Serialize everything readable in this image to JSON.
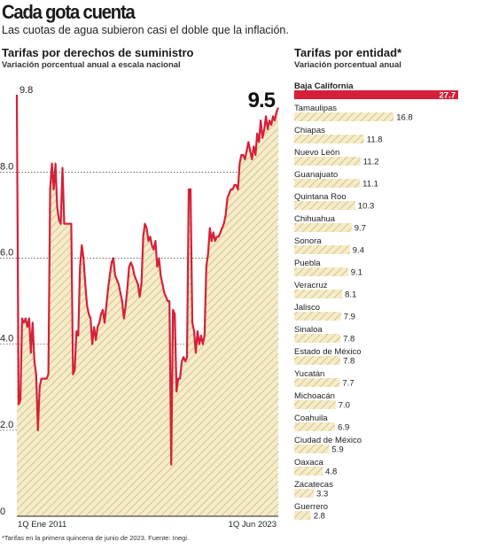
{
  "header": {
    "title": "Cada gota cuenta",
    "subtitle": "Las cuotas de agua subieron casi el doble que la inflación."
  },
  "footnote": "*Tarifas en la primera quincena de junio de 2023. Fuente: Inegi.",
  "colors": {
    "line": "#d6203a",
    "area_fill": "#f7ecc8",
    "hatch": "#c9b98a",
    "bar_highlight": "#d6203a",
    "bar_hatch_bg": "#f5eac6"
  },
  "chart_data": [
    {
      "type": "area",
      "title": "Tarifas por derechos de suministro",
      "subtitle": "Variación porcentual anual a escala nacional",
      "x_labels": [
        "1Q Ene 2011",
        "1Q Jun 2023"
      ],
      "x_range": [
        "2011-01",
        "2023-06"
      ],
      "ylim": [
        0,
        9.8
      ],
      "y_ticks": [
        {
          "value": 0,
          "label": "0"
        },
        {
          "value": 2,
          "label": "2.0"
        },
        {
          "value": 4,
          "label": "4.0"
        },
        {
          "value": 6,
          "label": "6.0"
        },
        {
          "value": 8,
          "label": "8.0"
        },
        {
          "value": 9.8,
          "label": "9.8"
        }
      ],
      "end_label": "9.5",
      "grid": true,
      "series": [
        {
          "values": [
            [
              "2011-01",
              9.8
            ],
            [
              "2011-02",
              2.6
            ],
            [
              "2011-03",
              2.7
            ],
            [
              "2011-04",
              4.6
            ],
            [
              "2011-05",
              4.5
            ],
            [
              "2011-06",
              4.6
            ],
            [
              "2011-07",
              4.4
            ],
            [
              "2011-08",
              4.6
            ],
            [
              "2011-09",
              3.8
            ],
            [
              "2011-10",
              4.5
            ],
            [
              "2011-11",
              3.6
            ],
            [
              "2011-12",
              3.3
            ],
            [
              "2012-01",
              2.0
            ],
            [
              "2012-02",
              3.0
            ],
            [
              "2012-03",
              3.2
            ],
            [
              "2012-04",
              3.2
            ],
            [
              "2012-05",
              3.2
            ],
            [
              "2012-06",
              3.2
            ],
            [
              "2012-07",
              3.3
            ],
            [
              "2012-08",
              7.6
            ],
            [
              "2012-09",
              8.2
            ],
            [
              "2012-10",
              7.6
            ],
            [
              "2012-11",
              8.2
            ],
            [
              "2012-12",
              7.2
            ],
            [
              "2013-01",
              6.9
            ],
            [
              "2013-02",
              6.8
            ],
            [
              "2013-03",
              8.1
            ],
            [
              "2013-04",
              6.8
            ],
            [
              "2013-05",
              6.8
            ],
            [
              "2013-06",
              6.8
            ],
            [
              "2013-07",
              6.8
            ],
            [
              "2013-08",
              6.8
            ],
            [
              "2013-09",
              3.3
            ],
            [
              "2013-10",
              3.4
            ],
            [
              "2013-11",
              4.3
            ],
            [
              "2013-12",
              4.2
            ],
            [
              "2014-01",
              5.8
            ],
            [
              "2014-02",
              6.3
            ],
            [
              "2014-03",
              6.0
            ],
            [
              "2014-04",
              5.4
            ],
            [
              "2014-05",
              4.9
            ],
            [
              "2014-06",
              4.7
            ],
            [
              "2014-07",
              4.6
            ],
            [
              "2014-08",
              4.0
            ],
            [
              "2014-09",
              4.4
            ],
            [
              "2014-10",
              4.1
            ],
            [
              "2014-11",
              4.4
            ],
            [
              "2014-12",
              4.5
            ],
            [
              "2015-01",
              4.7
            ],
            [
              "2015-02",
              4.8
            ],
            [
              "2015-03",
              4.5
            ],
            [
              "2015-04",
              4.9
            ],
            [
              "2015-05",
              5.3
            ],
            [
              "2015-06",
              5.6
            ],
            [
              "2015-07",
              5.9
            ],
            [
              "2015-08",
              6.0
            ],
            [
              "2015-09",
              5.6
            ],
            [
              "2015-10",
              5.5
            ],
            [
              "2015-11",
              5.4
            ],
            [
              "2015-12",
              5.2
            ],
            [
              "2016-01",
              5.0
            ],
            [
              "2016-02",
              4.6
            ],
            [
              "2016-03",
              4.9
            ],
            [
              "2016-04",
              5.3
            ],
            [
              "2016-05",
              5.8
            ],
            [
              "2016-06",
              5.9
            ],
            [
              "2016-07",
              5.8
            ],
            [
              "2016-08",
              5.6
            ],
            [
              "2016-09",
              5.5
            ],
            [
              "2016-10",
              5.4
            ],
            [
              "2016-11",
              5.1
            ],
            [
              "2016-12",
              5.4
            ],
            [
              "2017-01",
              6.5
            ],
            [
              "2017-02",
              6.8
            ],
            [
              "2017-03",
              6.7
            ],
            [
              "2017-04",
              6.4
            ],
            [
              "2017-05",
              6.5
            ],
            [
              "2017-06",
              6.3
            ],
            [
              "2017-07",
              6.2
            ],
            [
              "2017-08",
              6.4
            ],
            [
              "2017-09",
              5.8
            ],
            [
              "2017-10",
              6.0
            ],
            [
              "2017-11",
              5.6
            ],
            [
              "2017-12",
              5.4
            ],
            [
              "2018-01",
              5.2
            ],
            [
              "2018-02",
              5.1
            ],
            [
              "2018-03",
              5.0
            ],
            [
              "2018-04",
              5.0
            ],
            [
              "2018-05",
              1.2
            ],
            [
              "2018-06",
              4.8
            ],
            [
              "2018-07",
              4.7
            ],
            [
              "2018-08",
              2.9
            ],
            [
              "2018-09",
              3.2
            ],
            [
              "2018-10",
              3.2
            ],
            [
              "2018-11",
              3.6
            ],
            [
              "2018-12",
              3.7
            ],
            [
              "2019-01",
              3.6
            ],
            [
              "2019-02",
              3.7
            ],
            [
              "2019-03",
              7.6
            ],
            [
              "2019-04",
              7.6
            ],
            [
              "2019-05",
              4.5
            ],
            [
              "2019-06",
              4.3
            ],
            [
              "2019-07",
              3.8
            ],
            [
              "2019-08",
              4.3
            ],
            [
              "2019-09",
              4.0
            ],
            [
              "2019-10",
              4.2
            ],
            [
              "2019-11",
              4.0
            ],
            [
              "2019-12",
              4.2
            ],
            [
              "2020-01",
              5.8
            ],
            [
              "2020-02",
              6.1
            ],
            [
              "2020-03",
              6.7
            ],
            [
              "2020-04",
              6.4
            ],
            [
              "2020-05",
              6.6
            ],
            [
              "2020-06",
              6.4
            ],
            [
              "2020-07",
              6.5
            ],
            [
              "2020-08",
              6.5
            ],
            [
              "2020-09",
              6.6
            ],
            [
              "2020-10",
              6.7
            ],
            [
              "2020-11",
              6.8
            ],
            [
              "2020-12",
              7.0
            ],
            [
              "2021-01",
              7.4
            ],
            [
              "2021-02",
              7.5
            ],
            [
              "2021-03",
              7.6
            ],
            [
              "2021-04",
              7.6
            ],
            [
              "2021-05",
              7.7
            ],
            [
              "2021-06",
              7.7
            ],
            [
              "2021-07",
              7.6
            ],
            [
              "2021-08",
              8.2
            ],
            [
              "2021-09",
              8.4
            ],
            [
              "2021-10",
              8.4
            ],
            [
              "2021-11",
              8.3
            ],
            [
              "2021-12",
              8.5
            ],
            [
              "2022-01",
              8.7
            ],
            [
              "2022-02",
              8.5
            ],
            [
              "2022-03",
              8.3
            ],
            [
              "2022-04",
              8.6
            ],
            [
              "2022-05",
              8.4
            ],
            [
              "2022-06",
              8.9
            ],
            [
              "2022-07",
              8.7
            ],
            [
              "2022-08",
              9.2
            ],
            [
              "2022-09",
              8.8
            ],
            [
              "2022-10",
              9.0
            ],
            [
              "2022-11",
              9.3
            ],
            [
              "2022-12",
              9.0
            ],
            [
              "2023-01",
              9.2
            ],
            [
              "2023-02",
              9.1
            ],
            [
              "2023-03",
              9.3
            ],
            [
              "2023-04",
              9.2
            ],
            [
              "2023-05",
              9.4
            ],
            [
              "2023-06",
              9.5
            ]
          ]
        }
      ]
    },
    {
      "type": "bar",
      "orientation": "horizontal",
      "title": "Tarifas por entidad*",
      "subtitle": "Variación porcentual anual",
      "xlim": [
        0,
        27.7
      ],
      "highlight": "Baja California",
      "categories": [
        "Baja California",
        "Tamaulipas",
        "Chiapas",
        "Nuevo León",
        "Guanajuato",
        "Quintana Roo",
        "Chihuahua",
        "Sonora",
        "Puebla",
        "Veracruz",
        "Jalisco",
        "Sinaloa",
        "Estado de México",
        "Yucatán",
        "Michoacán",
        "Coahuila",
        "Ciudad de México",
        "Oaxaca",
        "Zacatecas",
        "Guerrero"
      ],
      "values": [
        27.7,
        16.8,
        11.8,
        11.2,
        11.1,
        10.3,
        9.7,
        9.4,
        9.1,
        8.1,
        7.9,
        7.8,
        7.8,
        7.7,
        7.0,
        6.9,
        5.9,
        4.8,
        3.3,
        2.8
      ],
      "value_labels": [
        "27.7",
        "16.8",
        "11.8",
        "11.2",
        "11.1",
        "10.3",
        "9.7",
        "9.4",
        "9.1",
        "8.1",
        "7.9",
        "7.8",
        "7.8",
        "7.7",
        "7.0",
        "6.9",
        "5.9",
        "4.8",
        "3.3",
        "2.8"
      ]
    }
  ]
}
